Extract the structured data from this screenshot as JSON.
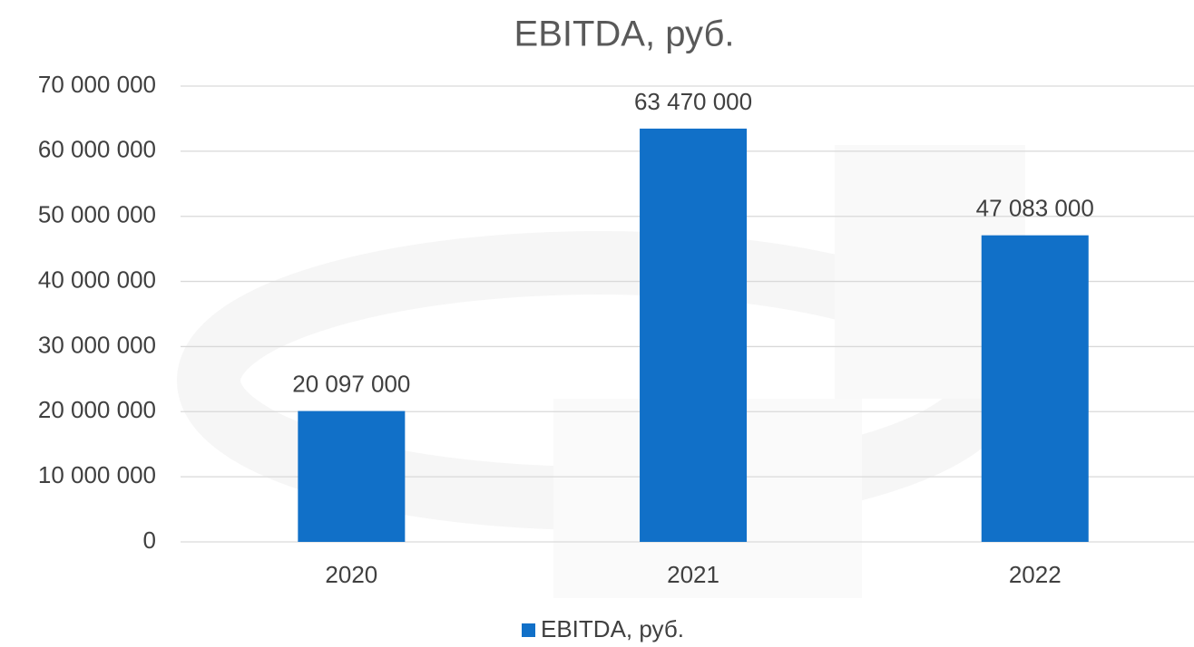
{
  "chart_data": {
    "type": "bar",
    "title": "EBITDA, руб.",
    "categories": [
      "2020",
      "2021",
      "2022"
    ],
    "series": [
      {
        "name": "EBITDA, руб.",
        "color": "#1170c8",
        "values": [
          20097000,
          63470000,
          47083000
        ],
        "value_labels": [
          "20 097 000",
          "63 470 000",
          "47 083 000"
        ]
      }
    ],
    "ylim": [
      0,
      70000000
    ],
    "yticks": [
      0,
      {
        "value": 10000000,
        "label": "10 000 000"
      },
      {
        "value": 20000000,
        "label": "20 000 000"
      },
      {
        "value": 30000000,
        "label": "30 000 000"
      },
      {
        "value": 40000000,
        "label": "40 000 000"
      },
      {
        "value": 50000000,
        "label": "50 000 000"
      },
      {
        "value": 60000000,
        "label": "60 000 000"
      },
      {
        "value": 70000000,
        "label": "70 000 000"
      }
    ],
    "grid": true,
    "legend": "bottom"
  }
}
